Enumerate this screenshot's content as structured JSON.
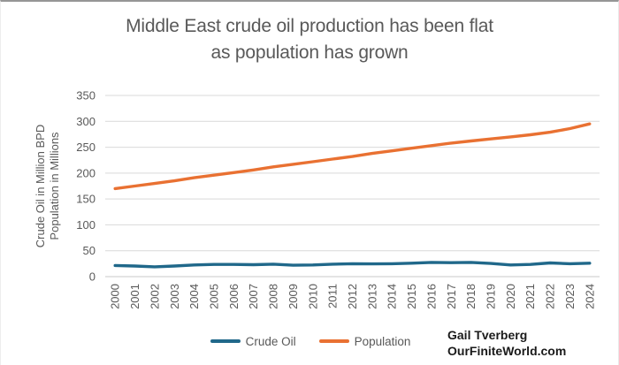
{
  "chart_data": {
    "type": "line",
    "title_lines": [
      "Middle East crude oil production has been flat",
      "as population has grown"
    ],
    "ylabel_lines": [
      "Crude Oil in Million BPD",
      "Population in Millions"
    ],
    "xlabel": "",
    "categories": [
      2000,
      2001,
      2002,
      2003,
      2004,
      2005,
      2006,
      2007,
      2008,
      2009,
      2010,
      2011,
      2012,
      2013,
      2014,
      2015,
      2016,
      2017,
      2018,
      2019,
      2020,
      2021,
      2022,
      2023,
      2024
    ],
    "series": [
      {
        "name": "Crude Oil",
        "color": "#20688A",
        "values": [
          21.5,
          20.5,
          19,
          20.5,
          22.5,
          23.5,
          23.5,
          23,
          24,
          22,
          22.5,
          24,
          25,
          24.5,
          25,
          26,
          27.5,
          27,
          27.5,
          25.5,
          22.5,
          23.5,
          26.5,
          25,
          26
        ]
      },
      {
        "name": "Population",
        "color": "#E97132",
        "values": [
          170,
          175,
          180,
          185,
          191,
          196,
          201,
          206,
          212,
          217,
          222,
          227,
          232,
          238,
          243,
          248,
          253,
          258,
          262,
          266,
          270,
          274,
          279,
          286,
          295
        ]
      }
    ],
    "ylim": [
      0,
      350
    ],
    "ytick_step": 50,
    "grid": true,
    "legend_position": "bottom",
    "annotations": [
      "Gail Tverberg",
      "OurFiniteWorld.com"
    ]
  },
  "colors": {
    "grid": "#D9D9D9",
    "axis": "#C9C9C9",
    "tick_text": "#595959",
    "title_text": "#595959"
  },
  "attribution": {
    "line1": "Gail Tverberg",
    "line2": "OurFiniteWorld.com"
  }
}
